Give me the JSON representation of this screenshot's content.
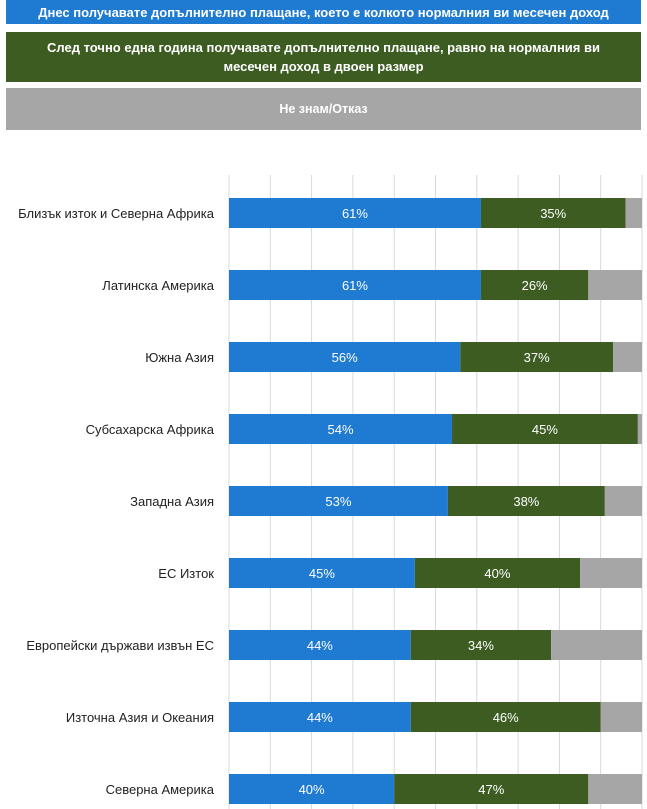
{
  "legend": {
    "a": "Днес получавате допълнително плащане, което е колкото нормалния ви месечен доход",
    "b": "След точно една година получавате допълнително плащане, равно на нормалния ви месечен доход в двоен размер",
    "c": "Не знам/Отказ"
  },
  "colors": {
    "a": "#1f7ad1",
    "b": "#3d5c22",
    "c": "#a6a6a6"
  },
  "chart_data": {
    "type": "bar",
    "orientation": "horizontal",
    "stacked": true,
    "xlim": [
      0,
      100
    ],
    "grid": true,
    "categories": [
      "Близък изток и Северна Африка",
      "Латинска Америка",
      "Южна Азия",
      "Субсахарска Африка",
      "Западна Азия",
      "ЕС Изток",
      "Европейски държави извън ЕС",
      "Източна Азия и Океания",
      "Северна Америка"
    ],
    "series": [
      {
        "name": "Днес получавате допълнително плащане, което е колкото нормалния ви месечен доход",
        "values": [
          61,
          61,
          56,
          54,
          53,
          45,
          44,
          44,
          40
        ],
        "labels": [
          "61%",
          "61%",
          "56%",
          "54%",
          "53%",
          "45%",
          "44%",
          "44%",
          "40%"
        ]
      },
      {
        "name": "След точно една година получавате допълнително плащане, равно на нормалния ви месечен доход в двоен размер",
        "values": [
          35,
          26,
          37,
          45,
          38,
          40,
          34,
          46,
          47
        ],
        "labels": [
          "35%",
          "26%",
          "37%",
          "45%",
          "38%",
          "40%",
          "34%",
          "46%",
          "47%"
        ]
      },
      {
        "name": "Не знам/Отказ",
        "values": [
          4,
          13,
          7,
          1,
          9,
          15,
          22,
          10,
          13
        ]
      }
    ]
  }
}
